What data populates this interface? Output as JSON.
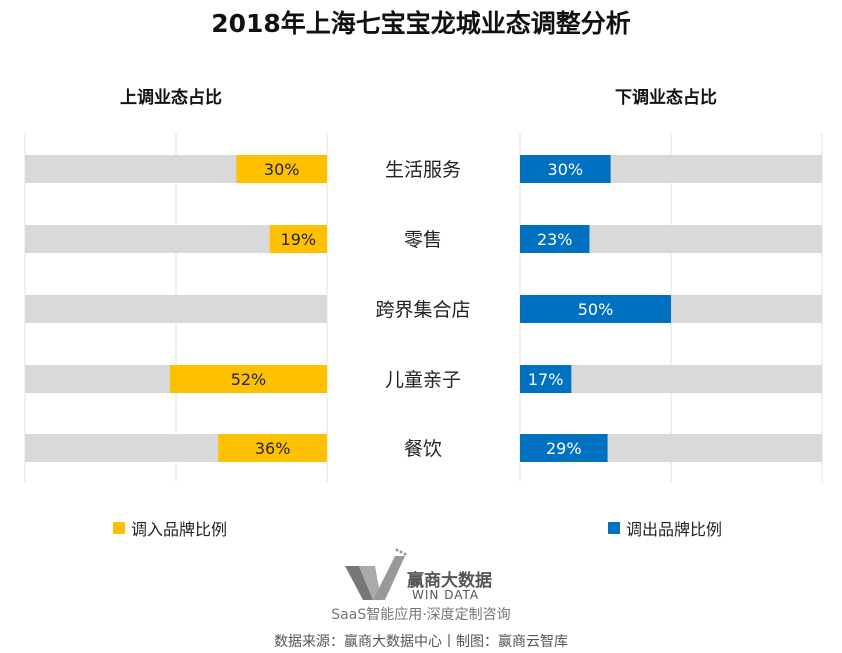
{
  "chart_data": {
    "type": "bar",
    "title": "2018年上海七宝宝龙城业态调整分析",
    "categories": [
      "生活服务",
      "零售",
      "跨界集合店",
      "儿童亲子",
      "餐饮"
    ],
    "xlim": [
      0,
      100
    ],
    "grid": true,
    "panels": [
      {
        "subtitle": "上调业态占比",
        "legend": "调入品牌比例",
        "color": "#FFC000",
        "direction": "right-to-left",
        "values": [
          30,
          19,
          null,
          52,
          36
        ],
        "labels": [
          "30%",
          "19%",
          "",
          "52%",
          "36%"
        ]
      },
      {
        "subtitle": "下调业态占比",
        "legend": "调出品牌比例",
        "color": "#0070C0",
        "direction": "left-to-right",
        "values": [
          30,
          23,
          50,
          17,
          29
        ],
        "labels": [
          "30%",
          "23%",
          "50%",
          "17%",
          "29%"
        ]
      }
    ],
    "legend_position": "bottom"
  },
  "watermark": "赢商云智库",
  "logo": {
    "cn": "赢商大数据",
    "en": "WIN DATA"
  },
  "slogan": "SaaS智能应用·深度定制咨询",
  "footer": "数据来源：赢商大数据中心丨制图：赢商云智库"
}
